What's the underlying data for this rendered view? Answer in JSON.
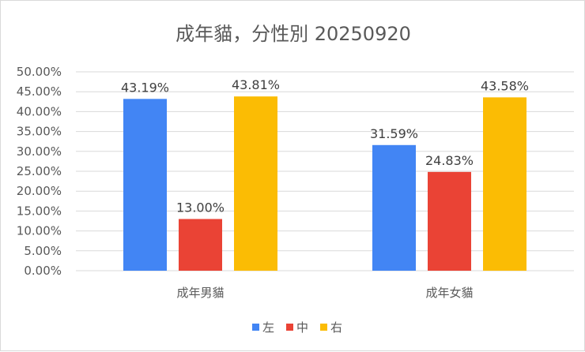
{
  "chart_data": {
    "type": "bar",
    "title": "成年貓，分性別 20250920",
    "categories": [
      "成年男貓",
      "成年女貓"
    ],
    "series": [
      {
        "name": "左",
        "values": [
          43.19,
          31.59
        ],
        "labels": [
          "43.19%",
          "31.59%"
        ],
        "color": "#4285F4"
      },
      {
        "name": "中",
        "values": [
          13.0,
          24.83
        ],
        "labels": [
          "13.00%",
          "24.83%"
        ],
        "color": "#EA4335"
      },
      {
        "name": "右",
        "values": [
          43.81,
          43.58
        ],
        "labels": [
          "43.81%",
          "43.58%"
        ],
        "color": "#FBBC04"
      }
    ],
    "ylim": [
      0,
      50
    ],
    "yticks": [
      "0.00%",
      "5.00%",
      "10.00%",
      "15.00%",
      "20.00%",
      "25.00%",
      "30.00%",
      "35.00%",
      "40.00%",
      "45.00%",
      "50.00%"
    ],
    "xlabel": "",
    "ylabel": "",
    "grid": true,
    "legend_position": "bottom"
  }
}
